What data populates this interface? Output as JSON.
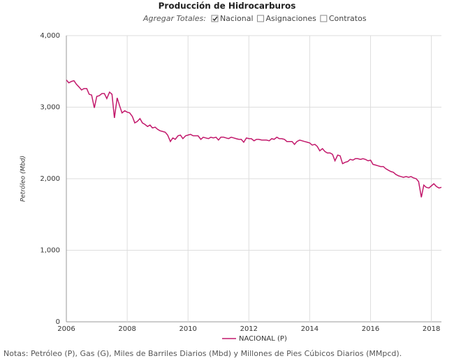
{
  "chart_data": {
    "type": "line",
    "title": "Producción de Hidrocarburos",
    "y_label": "Petróleo (Mbd)",
    "x": [
      2006.0,
      2006.08,
      2006.17,
      2006.25,
      2006.33,
      2006.42,
      2006.5,
      2006.58,
      2006.67,
      2006.75,
      2006.83,
      2006.92,
      2007.0,
      2007.08,
      2007.17,
      2007.25,
      2007.33,
      2007.42,
      2007.5,
      2007.58,
      2007.67,
      2007.75,
      2007.83,
      2007.92,
      2008.0,
      2008.08,
      2008.17,
      2008.25,
      2008.33,
      2008.42,
      2008.5,
      2008.58,
      2008.67,
      2008.75,
      2008.83,
      2008.92,
      2009.0,
      2009.08,
      2009.17,
      2009.25,
      2009.33,
      2009.42,
      2009.5,
      2009.58,
      2009.67,
      2009.75,
      2009.83,
      2009.92,
      2010.0,
      2010.08,
      2010.17,
      2010.25,
      2010.33,
      2010.42,
      2010.5,
      2010.58,
      2010.67,
      2010.75,
      2010.83,
      2010.92,
      2011.0,
      2011.08,
      2011.17,
      2011.25,
      2011.33,
      2011.42,
      2011.5,
      2011.58,
      2011.67,
      2011.75,
      2011.83,
      2011.92,
      2012.0,
      2012.08,
      2012.17,
      2012.25,
      2012.33,
      2012.42,
      2012.5,
      2012.58,
      2012.67,
      2012.75,
      2012.83,
      2012.92,
      2013.0,
      2013.08,
      2013.17,
      2013.25,
      2013.33,
      2013.42,
      2013.5,
      2013.58,
      2013.67,
      2013.75,
      2013.83,
      2013.92,
      2014.0,
      2014.08,
      2014.17,
      2014.25,
      2014.33,
      2014.42,
      2014.5,
      2014.58,
      2014.67,
      2014.75,
      2014.83,
      2014.92,
      2015.0,
      2015.08,
      2015.17,
      2015.25,
      2015.33,
      2015.42,
      2015.5,
      2015.58,
      2015.67,
      2015.75,
      2015.83,
      2015.92,
      2016.0,
      2016.08,
      2016.17,
      2016.25,
      2016.33,
      2016.42,
      2016.5,
      2016.58,
      2016.67,
      2016.75,
      2016.83,
      2016.92,
      2017.0,
      2017.08,
      2017.17,
      2017.25,
      2017.33,
      2017.42,
      2017.5,
      2017.58,
      2017.67,
      2017.75,
      2017.83,
      2017.92,
      2018.0,
      2018.08,
      2018.17,
      2018.25,
      2018.33
    ],
    "series": [
      {
        "name": "NACIONAL (P)",
        "color": "#c2186b",
        "values": [
          3380,
          3340,
          3360,
          3370,
          3320,
          3280,
          3240,
          3260,
          3260,
          3180,
          3170,
          2990,
          3150,
          3160,
          3190,
          3190,
          3120,
          3210,
          3180,
          2850,
          3130,
          3020,
          2920,
          2950,
          2930,
          2920,
          2870,
          2780,
          2800,
          2840,
          2780,
          2760,
          2730,
          2750,
          2710,
          2720,
          2690,
          2670,
          2660,
          2650,
          2610,
          2520,
          2570,
          2550,
          2600,
          2610,
          2560,
          2600,
          2610,
          2620,
          2600,
          2600,
          2600,
          2550,
          2580,
          2570,
          2560,
          2580,
          2570,
          2580,
          2540,
          2580,
          2580,
          2570,
          2560,
          2580,
          2570,
          2560,
          2550,
          2550,
          2510,
          2570,
          2560,
          2560,
          2530,
          2550,
          2550,
          2540,
          2540,
          2540,
          2530,
          2560,
          2550,
          2580,
          2560,
          2560,
          2550,
          2520,
          2520,
          2520,
          2480,
          2520,
          2540,
          2530,
          2520,
          2510,
          2500,
          2470,
          2480,
          2450,
          2390,
          2420,
          2380,
          2360,
          2360,
          2340,
          2250,
          2330,
          2320,
          2210,
          2230,
          2240,
          2270,
          2260,
          2280,
          2280,
          2270,
          2280,
          2270,
          2250,
          2260,
          2200,
          2190,
          2180,
          2170,
          2170,
          2140,
          2120,
          2100,
          2090,
          2060,
          2040,
          2030,
          2020,
          2030,
          2020,
          2030,
          2010,
          2000,
          1960,
          1740,
          1910,
          1880,
          1870,
          1900,
          1930,
          1890,
          1870,
          1880
        ]
      }
    ],
    "xlim": [
      2006,
      2018.33
    ],
    "xticks": [
      2006,
      2008,
      2010,
      2012,
      2014,
      2016,
      2018
    ],
    "ylim": [
      0,
      4000
    ],
    "yticks": [
      0,
      {
        "value": 1000,
        "label": "1,000"
      },
      {
        "value": 2000,
        "label": "2,000"
      },
      {
        "value": 3000,
        "label": "3,000"
      },
      {
        "value": 4000,
        "label": "4,000"
      }
    ],
    "grid": true,
    "legend": "bottom"
  },
  "controls": {
    "label": "Agregar Totales:",
    "options": [
      {
        "label": "Nacional",
        "checked": true
      },
      {
        "label": "Asignaciones",
        "checked": false
      },
      {
        "label": "Contratos",
        "checked": false
      }
    ]
  },
  "notes": "Notas: Petróleo (P), Gas (G), Miles de Barriles Diarios (Mbd) y Millones de Pies Cúbicos Diarios (MMpcd)."
}
